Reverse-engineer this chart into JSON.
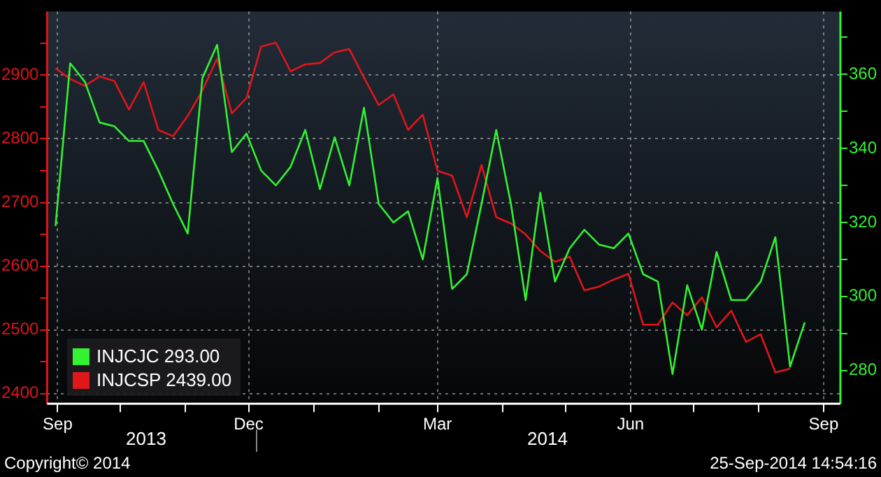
{
  "chart_data": {
    "type": "line",
    "x": [
      "2013-08-31",
      "2013-09-07",
      "2013-09-14",
      "2013-09-21",
      "2013-09-28",
      "2013-10-05",
      "2013-10-12",
      "2013-10-19",
      "2013-10-26",
      "2013-11-02",
      "2013-11-09",
      "2013-11-16",
      "2013-11-23",
      "2013-11-30",
      "2013-12-07",
      "2013-12-14",
      "2013-12-21",
      "2013-12-28",
      "2014-01-04",
      "2014-01-11",
      "2014-01-18",
      "2014-01-25",
      "2014-02-01",
      "2014-02-08",
      "2014-02-15",
      "2014-02-22",
      "2014-03-01",
      "2014-03-08",
      "2014-03-15",
      "2014-03-22",
      "2014-03-29",
      "2014-04-05",
      "2014-04-12",
      "2014-04-19",
      "2014-04-26",
      "2014-05-03",
      "2014-05-10",
      "2014-05-17",
      "2014-05-24",
      "2014-05-31",
      "2014-06-07",
      "2014-06-14",
      "2014-06-21",
      "2014-06-28",
      "2014-07-05",
      "2014-07-12",
      "2014-07-19",
      "2014-07-26",
      "2014-08-02",
      "2014-08-09",
      "2014-08-16",
      "2014-08-23"
    ],
    "series": [
      {
        "name": "INJCJC 293.00",
        "color": "#33f233",
        "axis": "y2",
        "values": [
          319,
          363,
          358,
          347,
          346,
          342,
          342,
          334,
          325,
          317,
          359,
          368,
          339,
          344,
          334,
          330,
          335,
          345,
          329,
          343,
          330,
          351,
          325,
          320,
          323,
          310,
          332,
          302,
          306,
          325,
          345,
          325,
          299,
          328,
          304,
          313,
          318,
          314,
          313,
          317,
          306,
          304,
          279,
          303,
          291,
          312,
          299,
          299,
          304,
          316,
          281,
          293
        ]
      },
      {
        "name": "INJCSP 2439.00",
        "color": "#e0161b",
        "values": [
          2911,
          2894,
          2883,
          2898,
          2891,
          2846,
          2889,
          2814,
          2804,
          2836,
          2876,
          2926,
          2840,
          2864,
          2945,
          2951,
          2906,
          2917,
          2919,
          2936,
          2941,
          2896,
          2853,
          2870,
          2814,
          2838,
          2750,
          2742,
          2677,
          2759,
          2677,
          2667,
          2650,
          2624,
          2607,
          2615,
          2562,
          2568,
          2579,
          2588,
          2508,
          2508,
          2543,
          2523,
          2551,
          2504,
          2530,
          2481,
          2493,
          2433,
          2439,
          null
        ]
      }
    ],
    "xlim": [
      "2013-08-27",
      "2014-09-09"
    ],
    "xticks": [
      {
        "value": "2013-09-01",
        "label": "Sep"
      },
      {
        "value": "2013-10-01",
        "label": null
      },
      {
        "value": "2013-11-01",
        "label": null
      },
      {
        "value": "2013-12-01",
        "label": "Dec"
      },
      {
        "value": "2014-01-01",
        "label": null
      },
      {
        "value": "2014-02-01",
        "label": null
      },
      {
        "value": "2014-03-01",
        "label": "Mar"
      },
      {
        "value": "2014-04-01",
        "label": null
      },
      {
        "value": "2014-05-01",
        "label": null
      },
      {
        "value": "2014-06-01",
        "label": "Jun"
      },
      {
        "value": "2014-07-01",
        "label": null
      },
      {
        "value": "2014-08-01",
        "label": null
      },
      {
        "value": "2014-09-01",
        "label": "Sep"
      }
    ],
    "ylim": [
      2384,
      3000
    ],
    "yticks": [
      2400,
      {
        "value": 2450,
        "label": null
      },
      2500,
      {
        "value": 2550,
        "label": null
      },
      2600,
      {
        "value": 2650,
        "label": null
      },
      2700,
      {
        "value": 2750,
        "label": null
      },
      2800,
      {
        "value": 2850,
        "label": null
      },
      2900,
      {
        "value": 2950,
        "label": null
      }
    ],
    "y2lim": [
      271,
      377
    ],
    "y2ticks": [
      280,
      {
        "value": 290,
        "label": null
      },
      300,
      {
        "value": 310,
        "label": null
      },
      320,
      {
        "value": 330,
        "label": null
      },
      340,
      {
        "value": 350,
        "label": null
      },
      360,
      {
        "value": 370,
        "label": null
      }
    ],
    "grid": true,
    "legend": "bottom left",
    "marker": "none",
    "line_style": "solid",
    "annotations": [
      "2013",
      "2014",
      "Copyright© 2014",
      "25-Sep-2014 14:54:16"
    ]
  }
}
